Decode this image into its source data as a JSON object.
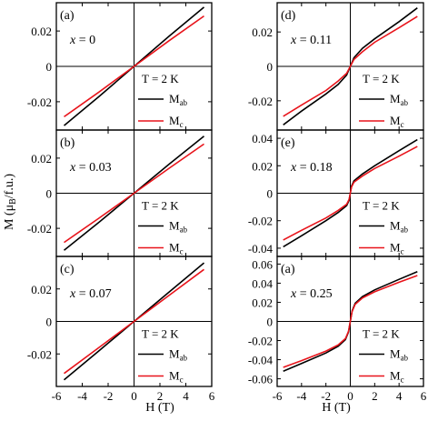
{
  "figure": {
    "y_label_main": "M (",
    "y_label_mu": "μ",
    "y_label_sub": "B",
    "y_label_tail": "/f.u.)",
    "x_label_left": "H (T)",
    "x_label_right": "H (T)"
  },
  "chart_data": [
    {
      "type": "line",
      "panel": "(a)",
      "x_text": "x",
      "x_value": "= 0",
      "temperature": "T = 2 K",
      "xlim": [
        -6,
        6
      ],
      "ylim": [
        -0.036,
        0.036
      ],
      "xticks": [
        -6,
        -4,
        -2,
        0,
        2,
        4,
        6
      ],
      "yticks": [
        0.02,
        0,
        -0.02
      ],
      "ytick_labels": [
        "0.02",
        "0",
        "-0.02"
      ],
      "series": [
        {
          "name": "M",
          "sub": "ab",
          "color": "#000000",
          "x": [
            -5.4,
            -2.7,
            0,
            2.7,
            5.4
          ],
          "y": [
            -0.0335,
            -0.017,
            0,
            0.017,
            0.0335
          ]
        },
        {
          "name": "M",
          "sub": "c",
          "color": "#e8141b",
          "x": [
            -5.4,
            -2.7,
            0,
            2.7,
            5.4
          ],
          "y": [
            -0.0285,
            -0.0145,
            0,
            0.0145,
            0.0285
          ]
        }
      ]
    },
    {
      "type": "line",
      "panel": "(b)",
      "x_text": "x",
      "x_value": "= 0.03",
      "temperature": "T = 2 K",
      "xlim": [
        -6,
        6
      ],
      "ylim": [
        -0.036,
        0.036
      ],
      "xticks": [
        -6,
        -4,
        -2,
        0,
        2,
        4,
        6
      ],
      "yticks": [
        0.02,
        0,
        -0.02
      ],
      "ytick_labels": [
        "0.02",
        "0",
        "-0.02"
      ],
      "series": [
        {
          "name": "M",
          "sub": "ab",
          "color": "#000000",
          "x": [
            -5.4,
            -2.7,
            0,
            2.7,
            5.4
          ],
          "y": [
            -0.0325,
            -0.0165,
            0,
            0.0165,
            0.0325
          ]
        },
        {
          "name": "M",
          "sub": "c",
          "color": "#e8141b",
          "x": [
            -5.4,
            -2.7,
            0,
            2.7,
            5.4
          ],
          "y": [
            -0.028,
            -0.0142,
            0,
            0.0142,
            0.028
          ]
        }
      ]
    },
    {
      "type": "line",
      "panel": "(c)",
      "x_text": "x",
      "x_value": "= 0.07",
      "temperature": "T = 2 K",
      "xlim": [
        -6,
        6
      ],
      "ylim": [
        -0.04,
        0.04
      ],
      "xticks": [
        -6,
        -4,
        -2,
        0,
        2,
        4,
        6
      ],
      "xtick_labels": [
        "-6",
        "-4",
        "-2",
        "0",
        "2",
        "4",
        "6"
      ],
      "yticks": [
        0.02,
        0,
        -0.02
      ],
      "ytick_labels": [
        "0.02",
        "0",
        "-0.02"
      ],
      "series": [
        {
          "name": "M",
          "sub": "ab",
          "color": "#000000",
          "x": [
            -5.4,
            -2.7,
            0,
            2.7,
            5.4
          ],
          "y": [
            -0.036,
            -0.018,
            0,
            0.018,
            0.036
          ]
        },
        {
          "name": "M",
          "sub": "c",
          "color": "#e8141b",
          "x": [
            -5.4,
            -2.7,
            0,
            2.7,
            5.4
          ],
          "y": [
            -0.032,
            -0.016,
            0,
            0.016,
            0.032
          ]
        }
      ]
    },
    {
      "type": "line",
      "panel": "(d)",
      "x_text": "x",
      "x_value": "= 0.11",
      "temperature": "T = 2 K",
      "xlim": [
        -6,
        6
      ],
      "ylim": [
        -0.037,
        0.037
      ],
      "xticks": [
        -6,
        -4,
        -2,
        0,
        2,
        4,
        6
      ],
      "yticks": [
        0.02,
        0,
        -0.02
      ],
      "ytick_labels": [
        "0.02",
        "0",
        "-0.02"
      ],
      "series": [
        {
          "name": "M",
          "sub": "ab",
          "color": "#000000",
          "x": [
            -5.5,
            -4,
            -2,
            -1,
            -0.3,
            0,
            0.3,
            1,
            2,
            4,
            5.5
          ],
          "y": [
            -0.034,
            -0.026,
            -0.016,
            -0.0105,
            -0.005,
            0,
            0.005,
            0.0105,
            0.016,
            0.026,
            0.034
          ]
        },
        {
          "name": "M",
          "sub": "c",
          "color": "#e8141b",
          "x": [
            -5.5,
            -4,
            -2,
            -1,
            -0.3,
            0,
            0.3,
            1,
            2,
            4,
            5.5
          ],
          "y": [
            -0.029,
            -0.0225,
            -0.014,
            -0.0085,
            -0.004,
            0,
            0.004,
            0.0085,
            0.014,
            0.0225,
            0.029
          ]
        }
      ]
    },
    {
      "type": "line",
      "panel": "(e)",
      "x_text": "x",
      "x_value": "= 0.18",
      "temperature": "T = 2 K",
      "xlim": [
        -6,
        6
      ],
      "ylim": [
        -0.046,
        0.046
      ],
      "xticks": [
        -6,
        -4,
        -2,
        0,
        2,
        4,
        6
      ],
      "yticks": [
        0.04,
        0.02,
        0,
        -0.02,
        -0.04
      ],
      "ytick_labels": [
        "0.04",
        "0.02",
        "0",
        "-0.02",
        "-0.04"
      ],
      "series": [
        {
          "name": "M",
          "sub": "ab",
          "color": "#000000",
          "x": [
            -5.5,
            -4,
            -2,
            -1,
            -0.3,
            -0.1,
            0,
            0.1,
            0.3,
            1,
            2,
            4,
            5.5
          ],
          "y": [
            -0.039,
            -0.031,
            -0.02,
            -0.014,
            -0.009,
            -0.005,
            0,
            0.005,
            0.009,
            0.014,
            0.02,
            0.031,
            0.039
          ]
        },
        {
          "name": "M",
          "sub": "c",
          "color": "#e8141b",
          "x": [
            -5.5,
            -4,
            -2,
            -1,
            -0.3,
            -0.1,
            0,
            0.1,
            0.3,
            1,
            2,
            4,
            5.5
          ],
          "y": [
            -0.034,
            -0.027,
            -0.018,
            -0.0125,
            -0.008,
            -0.0045,
            0,
            0.0045,
            0.008,
            0.0125,
            0.018,
            0.027,
            0.034
          ]
        }
      ]
    },
    {
      "type": "line",
      "panel": "(a)",
      "x_text": "x",
      "x_value": "= 0.25",
      "temperature": "T = 2 K",
      "xlim": [
        -6,
        6
      ],
      "ylim": [
        -0.068,
        0.068
      ],
      "xticks": [
        -6,
        -4,
        -2,
        0,
        2,
        4,
        6
      ],
      "xtick_labels": [
        "-6",
        "-4",
        "-2",
        "0",
        "2",
        "4",
        "6"
      ],
      "yticks": [
        0.06,
        0.04,
        0.02,
        0,
        -0.02,
        -0.04,
        -0.06
      ],
      "ytick_labels": [
        "0.06",
        "0.04",
        "0.02",
        "0",
        "-0.02",
        "-0.04",
        "-0.06"
      ],
      "series": [
        {
          "name": "M",
          "sub": "ab",
          "color": "#000000",
          "x": [
            -5.5,
            -4,
            -2,
            -1,
            -0.4,
            -0.15,
            0,
            0.15,
            0.4,
            1,
            2,
            4,
            5.5
          ],
          "y": [
            -0.052,
            -0.044,
            -0.033,
            -0.026,
            -0.019,
            -0.011,
            0,
            0.011,
            0.019,
            0.026,
            0.033,
            0.044,
            0.052
          ]
        },
        {
          "name": "M",
          "sub": "c",
          "color": "#e8141b",
          "x": [
            -5.5,
            -4,
            -2,
            -1,
            -0.4,
            -0.15,
            0,
            0.15,
            0.4,
            1,
            2,
            4,
            5.5
          ],
          "y": [
            -0.048,
            -0.041,
            -0.031,
            -0.0245,
            -0.018,
            -0.0105,
            0,
            0.0105,
            0.018,
            0.0245,
            0.031,
            0.041,
            0.048
          ]
        }
      ]
    }
  ]
}
